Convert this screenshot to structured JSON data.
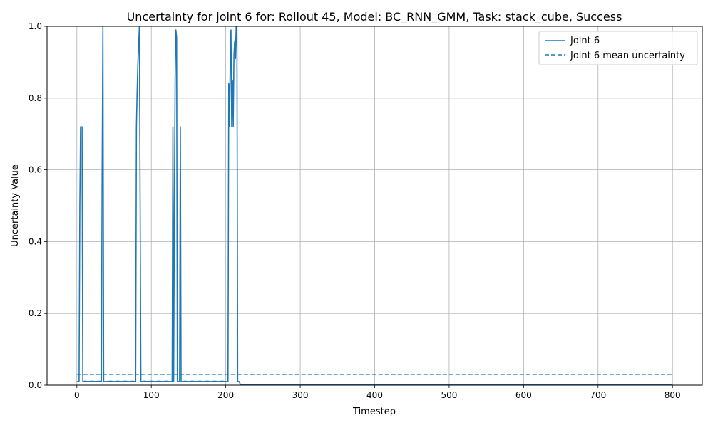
{
  "chart_data": {
    "type": "line",
    "title": "Uncertainty for joint 6 for: Rollout 45, Model: BC_RNN_GMM, Task: stack_cube, Success",
    "xlabel": "Timestep",
    "ylabel": "Uncertainty Value",
    "xlim": [
      -40,
      840
    ],
    "ylim": [
      0.0,
      1.0
    ],
    "x_ticks": [
      0,
      100,
      200,
      300,
      400,
      500,
      600,
      700,
      800
    ],
    "y_ticks": [
      0.0,
      0.2,
      0.4,
      0.6,
      0.8,
      1.0
    ],
    "x_tick_labels": [
      "0",
      "100",
      "200",
      "300",
      "400",
      "500",
      "600",
      "700",
      "800"
    ],
    "y_tick_labels": [
      "0.0",
      "0.2",
      "0.4",
      "0.6",
      "0.8",
      "1.0"
    ],
    "grid": true,
    "legend_position": "top-right",
    "color": "#1f77b4",
    "series": [
      {
        "name": "Joint 6",
        "style": "solid",
        "x": [
          0,
          2,
          3,
          4,
          5,
          6,
          7,
          8,
          9,
          10,
          15,
          20,
          25,
          30,
          33,
          34,
          35,
          36,
          37,
          40,
          45,
          50,
          55,
          60,
          65,
          70,
          75,
          78,
          79,
          80,
          81,
          82,
          83,
          84,
          85,
          86,
          87,
          88,
          90,
          95,
          100,
          105,
          110,
          115,
          120,
          125,
          128,
          129,
          130,
          131,
          132,
          133,
          134,
          135,
          136,
          137,
          138,
          139,
          140,
          141,
          142,
          145,
          150,
          155,
          160,
          165,
          170,
          175,
          180,
          185,
          190,
          195,
          200,
          203,
          204,
          205,
          206,
          207,
          208,
          209,
          210,
          211,
          212,
          213,
          214,
          215,
          216,
          217,
          218,
          219,
          220,
          222,
          230,
          300,
          400,
          500,
          600,
          700,
          800
        ],
        "y": [
          0.01,
          0.01,
          0.01,
          0.5,
          0.72,
          0.72,
          0.72,
          0.01,
          0.01,
          0.011,
          0.01,
          0.011,
          0.01,
          0.011,
          0.01,
          0.6,
          1.0,
          0.01,
          0.01,
          0.01,
          0.011,
          0.01,
          0.011,
          0.01,
          0.011,
          0.01,
          0.011,
          0.01,
          0.01,
          0.72,
          0.82,
          0.9,
          0.95,
          1.0,
          0.5,
          0.01,
          0.01,
          0.01,
          0.011,
          0.01,
          0.011,
          0.01,
          0.011,
          0.01,
          0.011,
          0.01,
          0.01,
          0.72,
          0.01,
          0.5,
          0.85,
          0.99,
          0.97,
          0.01,
          0.01,
          0.01,
          0.01,
          0.72,
          0.01,
          0.01,
          0.01,
          0.011,
          0.01,
          0.011,
          0.01,
          0.011,
          0.01,
          0.011,
          0.01,
          0.011,
          0.01,
          0.011,
          0.01,
          0.01,
          0.84,
          0.72,
          0.91,
          0.99,
          0.72,
          0.85,
          0.72,
          0.92,
          0.96,
          0.91,
          1.0,
          1.0,
          0.01,
          0.01,
          0.01,
          0.005,
          0.001,
          0.001,
          0.001,
          0.001,
          0.001,
          0.001,
          0.001,
          0.001,
          0.001
        ]
      },
      {
        "name": "Joint 6 mean uncertainty",
        "style": "dashed",
        "x": [
          0,
          800
        ],
        "y": [
          0.03,
          0.03
        ]
      }
    ]
  }
}
